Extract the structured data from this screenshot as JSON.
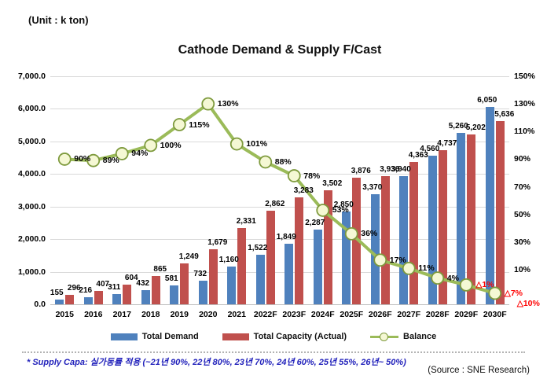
{
  "page": {
    "unit_label": "(Unit : k ton)",
    "footnote": "* Supply Capa: 실가동률 적용 (~21년 90%, 22년 80%, 23년 70%, 24년 60%, 25년 55%, 26년~ 50%)",
    "source": "(Source : SNE Research)"
  },
  "chart_data": {
    "type": "bar",
    "title": "Cathode Demand & Supply F/Cast",
    "categories": [
      "2015",
      "2016",
      "2017",
      "2018",
      "2019",
      "2020",
      "2021",
      "2022F",
      "2023F",
      "2024F",
      "2025F",
      "2026F",
      "2027F",
      "2028F",
      "2029F",
      "2030F"
    ],
    "series": [
      {
        "name": "Total Demand",
        "type": "bar",
        "color": "#4f81bd",
        "values": [
          155,
          216,
          311,
          432,
          581,
          732,
          1160,
          1522,
          1849,
          2287,
          2850,
          3370,
          3940,
          4560,
          5260,
          6050
        ],
        "labels": [
          "155",
          "216",
          "311",
          "432",
          "581",
          "732",
          "1,160",
          "1,522",
          "1,849",
          "2,287",
          "2,850",
          "3,370",
          "3,940",
          "4,560",
          "5,260",
          "6,050"
        ]
      },
      {
        "name": "Total Capacity (Actual)",
        "type": "bar",
        "color": "#c0504d",
        "values": [
          296,
          407,
          604,
          865,
          1249,
          1679,
          2331,
          2862,
          3283,
          3502,
          3876,
          3936,
          4363,
          4737,
          5202,
          5636
        ],
        "labels": [
          "296",
          "407",
          "604",
          "865",
          "1,249",
          "1,679",
          "2,331",
          "2,862",
          "3,283",
          "3,502",
          "3,876",
          "3,936",
          "4,363",
          "4,737",
          "5,202",
          "5,636"
        ]
      },
      {
        "name": "Balance",
        "type": "line",
        "axis": "right",
        "color": "#9bbb59",
        "values": [
          90,
          89,
          94,
          100,
          115,
          130,
          101,
          88,
          78,
          53,
          36,
          17,
          11,
          4,
          -1,
          -7
        ],
        "labels": [
          "90%",
          "89%",
          "94%",
          "100%",
          "115%",
          "130%",
          "101%",
          "88%",
          "78%",
          "53%",
          "36%",
          "17%",
          "11%",
          "4%",
          "△1%",
          "△7%"
        ]
      }
    ],
    "annotation": {
      "text": "△10%"
    },
    "left_axis": {
      "min": 0,
      "max": 7000,
      "step": 1000,
      "tick_labels": [
        "0.0",
        "1,000.0",
        "2,000.0",
        "3,000.0",
        "4,000.0",
        "5,000.0",
        "6,000.0",
        "7,000.0"
      ]
    },
    "right_axis": {
      "ticks": [
        {
          "value": 150,
          "label": "150%"
        },
        {
          "value": 130,
          "label": "130%"
        },
        {
          "value": 110,
          "label": "110%"
        },
        {
          "value": 90,
          "label": "90%"
        },
        {
          "value": 70,
          "label": "70%"
        },
        {
          "value": 50,
          "label": "50%"
        },
        {
          "value": 30,
          "label": "30%"
        },
        {
          "value": 10,
          "label": "10%"
        }
      ],
      "line_range": [
        -15,
        150
      ]
    },
    "colors": {
      "marker_fill": "#f5f8d4",
      "marker_stroke": "#7e9a3d",
      "negative": "#ff0000",
      "grid": "#d9d9d9"
    },
    "legend_position": "bottom",
    "grid": true
  }
}
